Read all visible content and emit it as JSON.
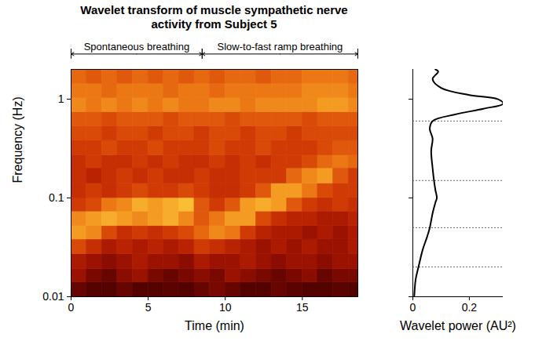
{
  "chart_data": [
    {
      "type": "heatmap",
      "title": "Wavelet transform of muscle sympathetic nerve activity from Subject 5",
      "xlabel": "Time (min)",
      "ylabel": "Frequency (Hz)",
      "xlim": [
        0,
        18.6
      ],
      "ylim": [
        0.01,
        2
      ],
      "xticks": [
        0,
        5,
        10,
        15
      ],
      "yticks": [
        0.01,
        0.1,
        1
      ],
      "log": "y",
      "zlim": [
        0,
        1
      ],
      "x_edges": [
        0,
        1,
        2,
        3,
        4,
        5,
        6,
        7,
        8,
        9,
        10,
        11,
        12,
        13,
        14,
        15,
        16,
        17,
        18,
        18.6
      ],
      "y_edges": [
        0.01,
        0.014,
        0.019,
        0.027,
        0.038,
        0.052,
        0.073,
        0.1,
        0.14,
        0.2,
        0.27,
        0.38,
        0.53,
        0.74,
        1.03,
        1.44,
        2
      ],
      "cells": [
        [
          0.15,
          0.1,
          0.1,
          0.15,
          0.1,
          0.1,
          0.12,
          0.1,
          0.15,
          0.2,
          0.15,
          0.1,
          0.1,
          0.15,
          0.12,
          0.1,
          0.1,
          0.12,
          0.1
        ],
        [
          0.3,
          0.2,
          0.15,
          0.25,
          0.3,
          0.2,
          0.15,
          0.2,
          0.25,
          0.2,
          0.3,
          0.25,
          0.2,
          0.15,
          0.2,
          0.25,
          0.15,
          0.2,
          0.2
        ],
        [
          0.35,
          0.3,
          0.25,
          0.3,
          0.35,
          0.3,
          0.3,
          0.25,
          0.35,
          0.3,
          0.3,
          0.35,
          0.3,
          0.25,
          0.3,
          0.3,
          0.25,
          0.3,
          0.3
        ],
        [
          0.55,
          0.45,
          0.35,
          0.4,
          0.35,
          0.4,
          0.35,
          0.4,
          0.5,
          0.45,
          0.4,
          0.35,
          0.3,
          0.35,
          0.3,
          0.35,
          0.3,
          0.3,
          0.35
        ],
        [
          0.8,
          0.75,
          0.55,
          0.45,
          0.5,
          0.45,
          0.5,
          0.55,
          0.65,
          0.75,
          0.7,
          0.5,
          0.4,
          0.35,
          0.35,
          0.3,
          0.35,
          0.3,
          0.35
        ],
        [
          0.75,
          0.8,
          0.85,
          0.8,
          0.75,
          0.8,
          0.85,
          0.75,
          0.6,
          0.7,
          0.8,
          0.8,
          0.55,
          0.45,
          0.4,
          0.4,
          0.35,
          0.35,
          0.4
        ],
        [
          0.5,
          0.55,
          0.7,
          0.75,
          0.85,
          0.8,
          0.85,
          0.9,
          0.6,
          0.5,
          0.6,
          0.8,
          0.85,
          0.8,
          0.6,
          0.5,
          0.45,
          0.5,
          0.45
        ],
        [
          0.45,
          0.5,
          0.45,
          0.5,
          0.55,
          0.5,
          0.5,
          0.55,
          0.5,
          0.45,
          0.45,
          0.5,
          0.6,
          0.8,
          0.8,
          0.7,
          0.55,
          0.5,
          0.5
        ],
        [
          0.45,
          0.4,
          0.45,
          0.5,
          0.45,
          0.5,
          0.45,
          0.45,
          0.5,
          0.45,
          0.45,
          0.5,
          0.5,
          0.5,
          0.65,
          0.75,
          0.8,
          0.6,
          0.5
        ],
        [
          0.45,
          0.5,
          0.45,
          0.45,
          0.5,
          0.45,
          0.5,
          0.45,
          0.45,
          0.5,
          0.45,
          0.5,
          0.45,
          0.5,
          0.5,
          0.55,
          0.65,
          0.7,
          0.65
        ],
        [
          0.5,
          0.5,
          0.55,
          0.5,
          0.5,
          0.55,
          0.5,
          0.5,
          0.5,
          0.55,
          0.5,
          0.5,
          0.55,
          0.5,
          0.5,
          0.5,
          0.55,
          0.6,
          0.6
        ],
        [
          0.55,
          0.55,
          0.5,
          0.55,
          0.55,
          0.5,
          0.55,
          0.55,
          0.5,
          0.55,
          0.55,
          0.5,
          0.55,
          0.55,
          0.5,
          0.55,
          0.55,
          0.55,
          0.55
        ],
        [
          0.6,
          0.6,
          0.55,
          0.6,
          0.6,
          0.6,
          0.55,
          0.6,
          0.6,
          0.6,
          0.55,
          0.6,
          0.6,
          0.6,
          0.6,
          0.55,
          0.6,
          0.6,
          0.6
        ],
        [
          0.75,
          0.7,
          0.75,
          0.7,
          0.75,
          0.7,
          0.75,
          0.7,
          0.7,
          0.75,
          0.75,
          0.7,
          0.75,
          0.75,
          0.75,
          0.75,
          0.8,
          0.8,
          0.75
        ],
        [
          0.7,
          0.7,
          0.65,
          0.7,
          0.7,
          0.7,
          0.65,
          0.7,
          0.7,
          0.65,
          0.7,
          0.7,
          0.7,
          0.7,
          0.7,
          0.75,
          0.75,
          0.75,
          0.7
        ],
        [
          0.65,
          0.6,
          0.65,
          0.6,
          0.65,
          0.6,
          0.65,
          0.6,
          0.65,
          0.6,
          0.65,
          0.65,
          0.6,
          0.65,
          0.65,
          0.7,
          0.7,
          0.7,
          0.65
        ]
      ],
      "annotations": [
        {
          "text": "Spontaneous breathing",
          "x": [
            0,
            8.5
          ]
        },
        {
          "text": "Slow-to-fast ramp breathing",
          "x": [
            8.5,
            18.6
          ]
        }
      ]
    },
    {
      "type": "line",
      "xlabel": "Wavelet power (AU²)",
      "xlim": [
        0,
        0.32
      ],
      "xticks": [
        0,
        0.2
      ],
      "ylim": [
        0.01,
        2
      ],
      "yticks": [
        0.01,
        0.1,
        1
      ],
      "log": "y",
      "tick_labels": "x",
      "color": "#000000",
      "x": [
        0.005,
        0.01,
        0.02,
        0.035,
        0.05,
        0.06,
        0.07,
        0.08,
        0.085,
        0.08,
        0.075,
        0.07,
        0.065,
        0.07,
        0.06,
        0.07,
        0.15,
        0.25,
        0.32,
        0.3,
        0.2,
        0.1,
        0.07,
        0.09,
        0.08
      ],
      "y": [
        0.01,
        0.015,
        0.02,
        0.03,
        0.04,
        0.05,
        0.07,
        0.09,
        0.1,
        0.12,
        0.15,
        0.2,
        0.3,
        0.4,
        0.5,
        0.6,
        0.7,
        0.8,
        0.9,
        1,
        1.1,
        1.3,
        1.6,
        1.9,
        2
      ],
      "band_edges": [
        0.02,
        0.05,
        0.15,
        0.6
      ]
    }
  ]
}
